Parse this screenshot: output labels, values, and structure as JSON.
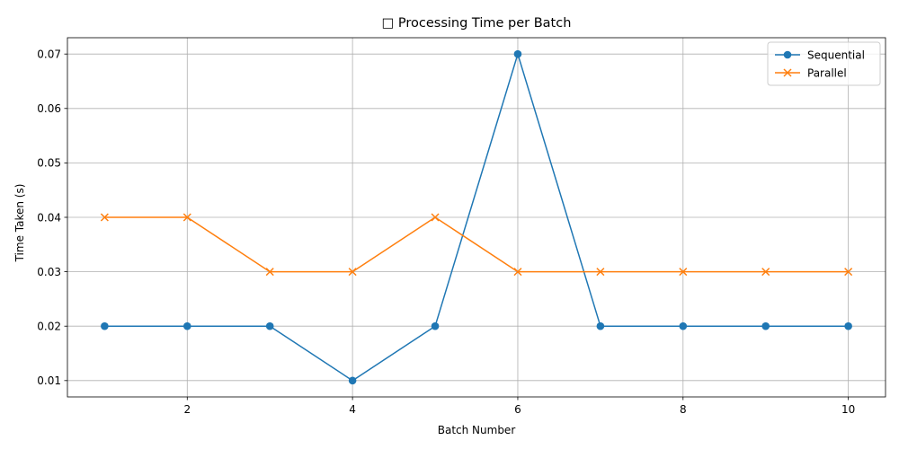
{
  "chart_data": {
    "type": "line",
    "title": "□ Processing Time per Batch",
    "xlabel": "Batch Number",
    "ylabel": "Time Taken (s)",
    "x": [
      1,
      2,
      3,
      4,
      5,
      6,
      7,
      8,
      9,
      10
    ],
    "xlim": [
      0.55,
      10.45
    ],
    "ylim": [
      0.007,
      0.073
    ],
    "xticks": [
      2,
      4,
      6,
      8,
      10
    ],
    "yticks": [
      0.01,
      0.02,
      0.03,
      0.04,
      0.05,
      0.06,
      0.07
    ],
    "grid": true,
    "legend_position": "top-right",
    "series": [
      {
        "name": "Sequential",
        "marker": "circle",
        "color": "#1f77b4",
        "values": [
          0.02,
          0.02,
          0.02,
          0.01,
          0.02,
          0.07,
          0.02,
          0.02,
          0.02,
          0.02
        ]
      },
      {
        "name": "Parallel",
        "marker": "x",
        "color": "#ff7f0e",
        "values": [
          0.04,
          0.04,
          0.03,
          0.03,
          0.04,
          0.03,
          0.03,
          0.03,
          0.03,
          0.03
        ]
      }
    ]
  }
}
